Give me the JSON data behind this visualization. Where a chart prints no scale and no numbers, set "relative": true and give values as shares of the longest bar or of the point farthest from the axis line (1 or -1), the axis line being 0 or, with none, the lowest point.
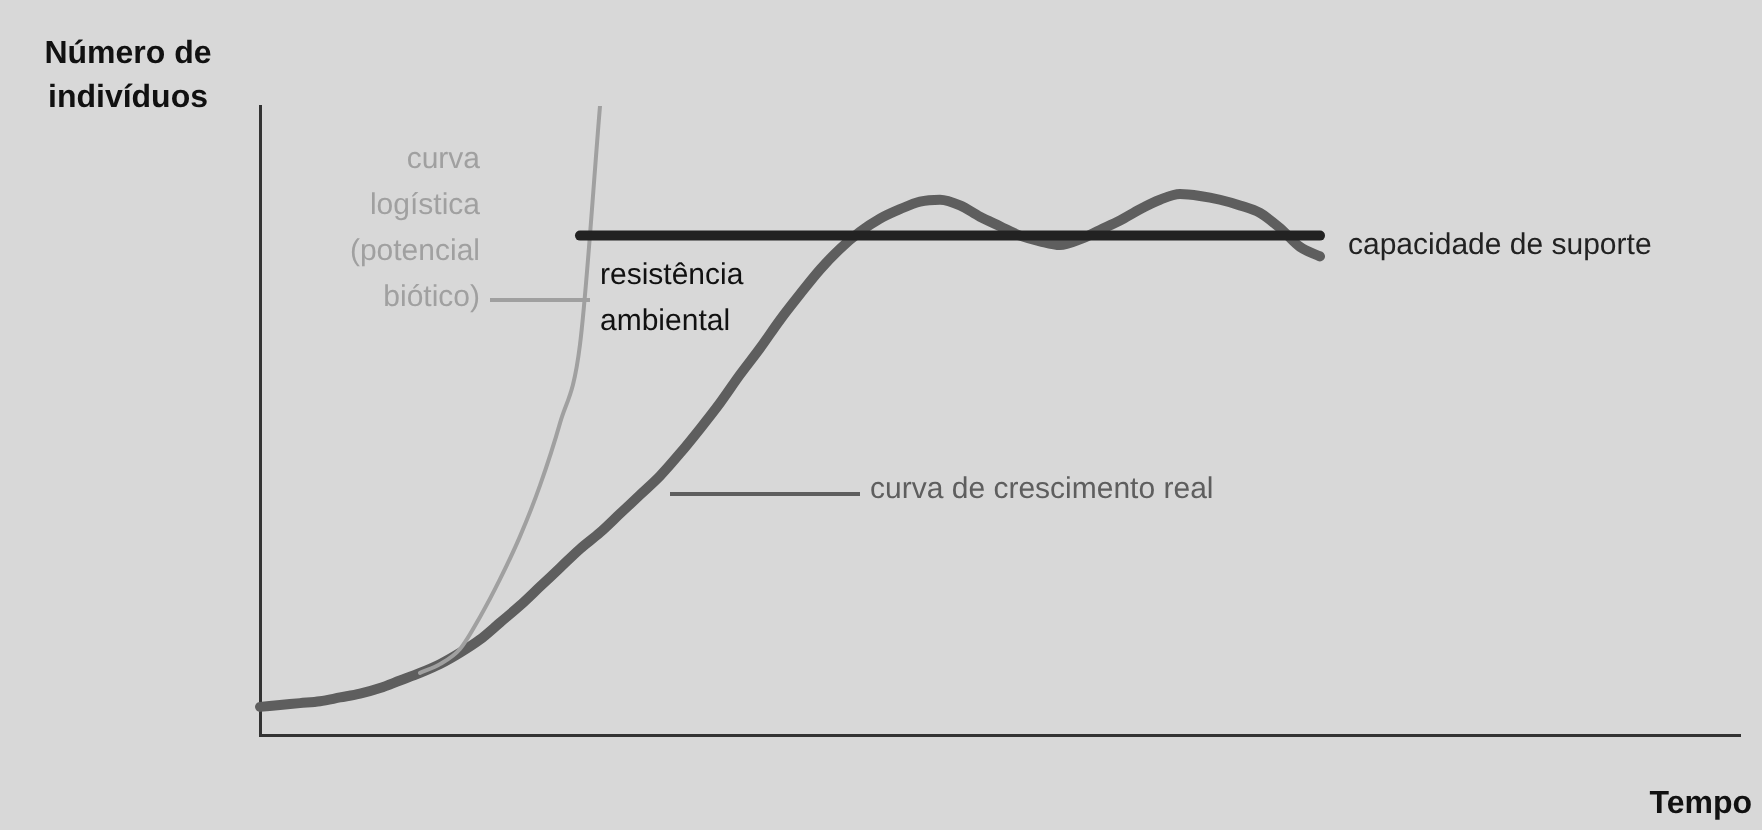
{
  "chart_data": {
    "type": "line",
    "relative": true,
    "xlabel": "Tempo",
    "ylabel": "Número de indivíduos",
    "marker": "none",
    "line_style": "solid",
    "annotations": [
      "resistência ambiental"
    ],
    "categories": [
      null,
      null,
      null,
      null,
      null,
      null,
      null,
      null,
      null,
      null,
      null,
      null,
      null,
      null,
      null,
      null,
      null,
      null,
      null,
      null,
      null,
      null,
      null,
      null,
      null,
      null,
      null,
      null,
      null,
      null,
      null,
      null,
      null,
      null,
      null,
      null,
      null,
      null,
      null,
      null,
      null,
      null,
      null,
      null,
      null,
      null,
      null,
      null,
      null,
      null,
      null,
      null,
      null,
      null,
      null,
      null,
      null,
      null,
      null,
      null,
      null,
      null,
      null,
      null,
      null,
      null,
      null,
      null,
      null,
      null,
      null,
      null,
      null,
      null,
      null
    ],
    "series": [
      {
        "name": "curva de crescimento real",
        "color": "#5e5e5e",
        "values": [
          0.045,
          0.048,
          0.051,
          0.054,
          0.06,
          0.066,
          0.075,
          0.087,
          0.099,
          0.113,
          0.131,
          0.152,
          0.179,
          0.206,
          0.236,
          0.266,
          0.296,
          0.322,
          0.352,
          0.382,
          0.412,
          0.448,
          0.487,
          0.528,
          0.573,
          0.615,
          0.66,
          0.701,
          0.74,
          0.773,
          0.8,
          0.821,
          0.836,
          0.848,
          0.851,
          0.842,
          0.824,
          0.809,
          0.794,
          0.785,
          0.779,
          0.788,
          0.803,
          0.818,
          0.836,
          0.851,
          0.86,
          0.857,
          0.851,
          0.842,
          0.83,
          0.806,
          0.776,
          0.761,
          null,
          null,
          null,
          null,
          null,
          null,
          null,
          null,
          null,
          null,
          null,
          null,
          null,
          null,
          null,
          null,
          null,
          null,
          null,
          null,
          null
        ]
      },
      {
        "name": "curva logística (potencial biótico)",
        "color": "#a0a0a0",
        "values": [
          null,
          null,
          null,
          null,
          null,
          null,
          null,
          null,
          0.099,
          0.113,
          0.137,
          0.188,
          0.248,
          0.316,
          0.397,
          0.496,
          0.621,
          1,
          null,
          null,
          null,
          null,
          null,
          null,
          null,
          null,
          null,
          null,
          null,
          null,
          null,
          null,
          null,
          null,
          null,
          null,
          null,
          null,
          null,
          null,
          null,
          null,
          null,
          null,
          null,
          null,
          null,
          null,
          null,
          null,
          null,
          null,
          null,
          null,
          null,
          null,
          null,
          null,
          null,
          null,
          null,
          null,
          null,
          null,
          null,
          null,
          null,
          null,
          null,
          null,
          null,
          null,
          null,
          null,
          null
        ]
      },
      {
        "name": "capacidade de suporte",
        "color": "#222222",
        "values": [
          null,
          null,
          null,
          null,
          null,
          null,
          null,
          null,
          null,
          null,
          null,
          null,
          null,
          null,
          null,
          null,
          0.794,
          0.794,
          0.794,
          0.794,
          0.794,
          0.794,
          0.794,
          0.794,
          0.794,
          0.794,
          0.794,
          0.794,
          0.794,
          0.794,
          0.794,
          0.794,
          0.794,
          0.794,
          0.794,
          0.794,
          0.794,
          0.794,
          0.794,
          0.794,
          0.794,
          0.794,
          0.794,
          0.794,
          0.794,
          0.794,
          0.794,
          0.794,
          0.794,
          0.794,
          0.794,
          0.794,
          0.794,
          0.794,
          null,
          null,
          null,
          null,
          null,
          null,
          null,
          null,
          null,
          null,
          null,
          null,
          null,
          null,
          null,
          null,
          null,
          null,
          null,
          null,
          null
        ]
      }
    ]
  }
}
